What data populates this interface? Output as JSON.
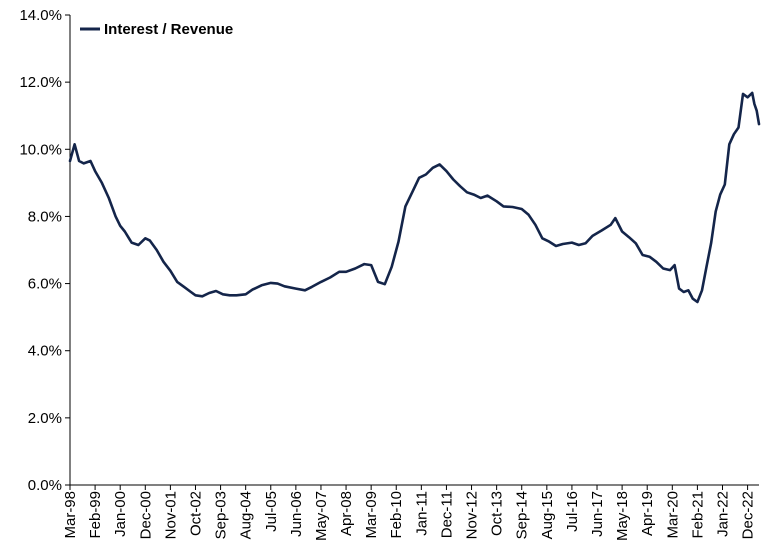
{
  "chart_data": {
    "type": "line",
    "title": "",
    "xlabel": "",
    "ylabel": "",
    "ylim": [
      0,
      0.14
    ],
    "y_ticks": [
      "0.0%",
      "2.0%",
      "4.0%",
      "6.0%",
      "8.0%",
      "10.0%",
      "12.0%",
      "14.0%"
    ],
    "x_ticks": [
      "Mar-98",
      "Feb-99",
      "Jan-00",
      "Dec-00",
      "Nov-01",
      "Oct-02",
      "Sep-03",
      "Aug-04",
      "Jul-05",
      "Jun-06",
      "May-07",
      "Apr-08",
      "Mar-09",
      "Feb-10",
      "Jan-11",
      "Dec-11",
      "Nov-12",
      "Oct-13",
      "Sep-14",
      "Aug-15",
      "Jul-16",
      "Jun-17",
      "May-18",
      "Apr-19",
      "Mar-20",
      "Feb-21",
      "Jan-22",
      "Dec-22"
    ],
    "x_range": [
      "1998-03",
      "2023-05"
    ],
    "grid": false,
    "legend_position": "top-left",
    "colors": {
      "line": "#14254a",
      "axis": "#000000"
    },
    "series": [
      {
        "name": "Interest / Revenue",
        "x": [
          "1998-03",
          "1998-05",
          "1998-07",
          "1998-09",
          "1998-12",
          "1999-02",
          "1999-05",
          "1999-08",
          "1999-11",
          "2000-01",
          "2000-03",
          "2000-06",
          "2000-09",
          "2000-12",
          "2001-02",
          "2001-05",
          "2001-08",
          "2001-11",
          "2002-02",
          "2002-05",
          "2002-08",
          "2002-10",
          "2003-01",
          "2003-04",
          "2003-07",
          "2003-10",
          "2004-01",
          "2004-04",
          "2004-08",
          "2004-11",
          "2005-03",
          "2005-07",
          "2005-10",
          "2006-01",
          "2006-06",
          "2006-10",
          "2007-01",
          "2007-05",
          "2007-09",
          "2008-01",
          "2008-04",
          "2008-08",
          "2008-12",
          "2009-03",
          "2009-06",
          "2009-09",
          "2009-12",
          "2010-03",
          "2010-06",
          "2010-09",
          "2010-12",
          "2011-03",
          "2011-06",
          "2011-09",
          "2011-12",
          "2012-03",
          "2012-06",
          "2012-09",
          "2012-12",
          "2013-03",
          "2013-06",
          "2013-10",
          "2014-01",
          "2014-05",
          "2014-09",
          "2014-12",
          "2015-03",
          "2015-06",
          "2015-09",
          "2015-12",
          "2016-03",
          "2016-07",
          "2016-10",
          "2017-01",
          "2017-04",
          "2017-08",
          "2017-12",
          "2018-02",
          "2018-05",
          "2018-08",
          "2018-11",
          "2019-02",
          "2019-05",
          "2019-08",
          "2019-11",
          "2020-02",
          "2020-04",
          "2020-06",
          "2020-08",
          "2020-10",
          "2020-12",
          "2021-02",
          "2021-04",
          "2021-06",
          "2021-08",
          "2021-10",
          "2021-12",
          "2022-02",
          "2022-04",
          "2022-06",
          "2022-08",
          "2022-10",
          "2022-12",
          "2023-02",
          "2023-03",
          "2023-04",
          "2023-05"
        ],
        "values": [
          0.0965,
          0.1015,
          0.0965,
          0.0958,
          0.0965,
          0.0935,
          0.09,
          0.0855,
          0.08,
          0.0772,
          0.0755,
          0.0722,
          0.0715,
          0.0735,
          0.0728,
          0.07,
          0.0665,
          0.0638,
          0.0605,
          0.059,
          0.0575,
          0.0565,
          0.0562,
          0.0572,
          0.0578,
          0.0568,
          0.0565,
          0.0565,
          0.0568,
          0.0582,
          0.0595,
          0.0602,
          0.06,
          0.0592,
          0.0585,
          0.058,
          0.059,
          0.0605,
          0.0618,
          0.0635,
          0.0635,
          0.0645,
          0.0658,
          0.0655,
          0.0605,
          0.0598,
          0.065,
          0.0725,
          0.083,
          0.0872,
          0.0915,
          0.0925,
          0.0945,
          0.0955,
          0.0935,
          0.091,
          0.089,
          0.0872,
          0.0865,
          0.0855,
          0.0862,
          0.0845,
          0.083,
          0.0828,
          0.0822,
          0.0805,
          0.0775,
          0.0735,
          0.0725,
          0.0712,
          0.0718,
          0.0722,
          0.0715,
          0.072,
          0.0742,
          0.0758,
          0.0775,
          0.0795,
          0.0755,
          0.0738,
          0.072,
          0.0685,
          0.068,
          0.0665,
          0.0645,
          0.064,
          0.0655,
          0.0585,
          0.0575,
          0.058,
          0.0555,
          0.0545,
          0.058,
          0.065,
          0.072,
          0.0815,
          0.0865,
          0.0895,
          0.1015,
          0.1045,
          0.1065,
          0.1165,
          0.1155,
          0.1168,
          0.1135,
          0.1115,
          0.1075
        ]
      }
    ]
  }
}
